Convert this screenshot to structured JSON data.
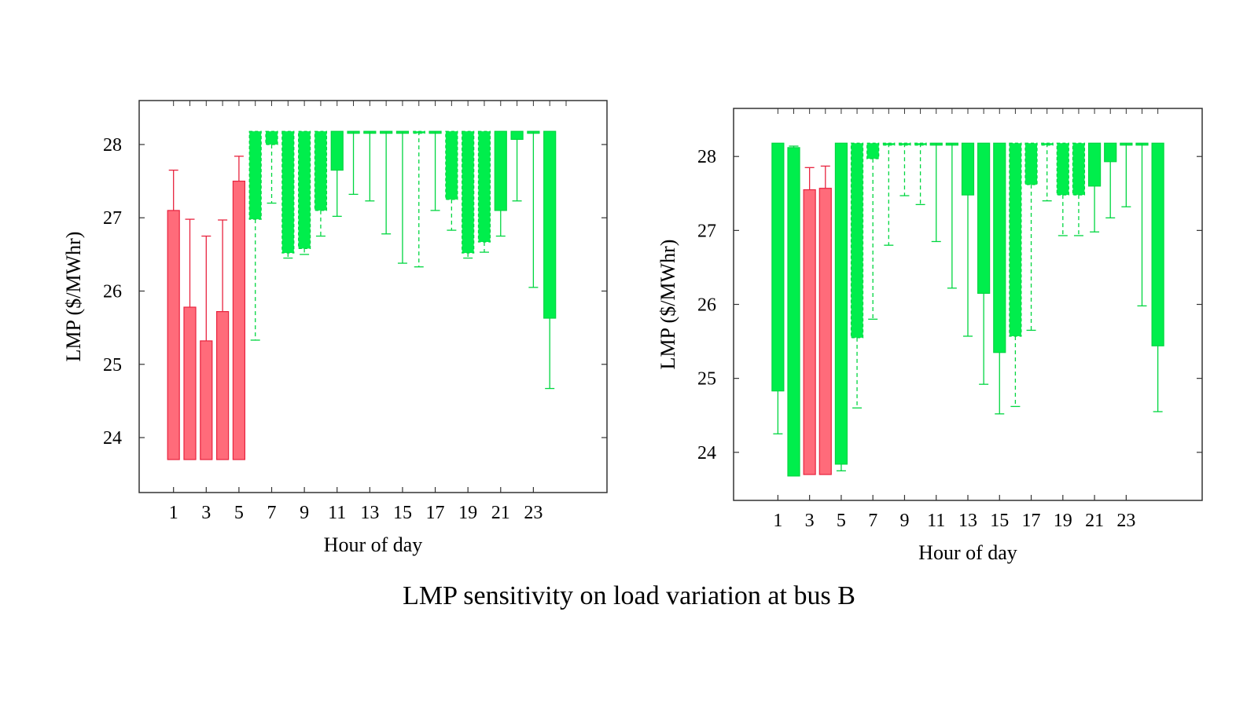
{
  "caption": "LMP sensitivity on load variation at bus B",
  "colors": {
    "red": "#ff6b7a",
    "red_edge": "#e8243f",
    "green": "#00ee4c",
    "green_edge": "#00d640",
    "axis": "#333333"
  },
  "chart_data": [
    {
      "type": "bar",
      "xlabel": "Hour of day",
      "ylabel": "LMP ($/MWhr)",
      "xticks": [
        1,
        3,
        5,
        7,
        9,
        11,
        13,
        15,
        17,
        19,
        21,
        23
      ],
      "yticks": [
        24,
        25,
        26,
        27,
        28
      ],
      "ylim": [
        23.25,
        28.6
      ],
      "xlim": [
        -1.1,
        27.5
      ],
      "grid": false,
      "series": [
        {
          "color": "red",
          "bars": [
            {
              "hour": 1,
              "low": 23.7,
              "high": 27.1,
              "whisker": 27.65
            },
            {
              "hour": 2,
              "low": 23.7,
              "high": 25.78,
              "whisker": 26.98
            },
            {
              "hour": 3,
              "low": 23.7,
              "high": 25.32,
              "whisker": 26.75
            },
            {
              "hour": 4,
              "low": 23.7,
              "high": 25.72,
              "whisker": 26.97
            },
            {
              "hour": 5,
              "low": 23.7,
              "high": 27.5,
              "whisker": 27.84
            }
          ]
        },
        {
          "color": "green",
          "bars": [
            {
              "hour": 6,
              "low": 26.98,
              "high": 28.18,
              "whisker": 25.33,
              "dashed": true
            },
            {
              "hour": 7,
              "low": 28.0,
              "high": 28.18,
              "whisker": 27.2,
              "dashed": true
            },
            {
              "hour": 8,
              "low": 26.52,
              "high": 28.18,
              "whisker": 26.45,
              "dashed": true
            },
            {
              "hour": 9,
              "low": 26.58,
              "high": 28.18,
              "whisker": 26.5,
              "dashed": true
            },
            {
              "hour": 10,
              "low": 27.1,
              "high": 28.18,
              "whisker": 26.75,
              "dashed": true
            },
            {
              "hour": 11,
              "low": 27.65,
              "high": 28.18,
              "whisker": 27.02
            },
            {
              "hour": 12,
              "low": 28.18,
              "high": 28.18,
              "whisker": 27.32
            },
            {
              "hour": 13,
              "low": 28.18,
              "high": 28.18,
              "whisker": 27.23
            },
            {
              "hour": 14,
              "low": 28.18,
              "high": 28.18,
              "whisker": 26.78
            },
            {
              "hour": 15,
              "low": 28.18,
              "high": 28.18,
              "whisker": 26.38
            },
            {
              "hour": 16,
              "low": 28.18,
              "high": 28.18,
              "whisker": 26.33,
              "dashed": true
            },
            {
              "hour": 17,
              "low": 28.18,
              "high": 28.18,
              "whisker": 27.1
            },
            {
              "hour": 18,
              "low": 27.25,
              "high": 28.18,
              "whisker": 26.83,
              "dashed": true
            },
            {
              "hour": 19,
              "low": 26.52,
              "high": 28.18,
              "whisker": 26.45,
              "dashed": true
            },
            {
              "hour": 20,
              "low": 26.67,
              "high": 28.18,
              "whisker": 26.53,
              "dashed": true
            },
            {
              "hour": 21,
              "low": 27.1,
              "high": 28.18,
              "whisker": 26.75
            },
            {
              "hour": 22,
              "low": 28.07,
              "high": 28.18,
              "whisker": 27.23
            },
            {
              "hour": 23,
              "low": 28.18,
              "high": 28.18,
              "whisker": 26.05
            },
            {
              "hour": 24,
              "low": 25.63,
              "high": 28.18,
              "whisker": 24.67
            }
          ]
        }
      ]
    },
    {
      "type": "bar",
      "xlabel": "Hour of day",
      "ylabel": "LMP ($/MWhr)",
      "xticks": [
        1,
        3,
        5,
        7,
        9,
        11,
        13,
        15,
        17,
        19,
        21,
        23
      ],
      "yticks": [
        24,
        25,
        26,
        27,
        28
      ],
      "ylim": [
        23.35,
        28.65
      ],
      "xlim": [
        -1.8,
        27.8
      ],
      "grid": false,
      "series": [
        {
          "color": "red",
          "bars": [
            {
              "hour": 3,
              "low": 23.7,
              "high": 27.55,
              "whisker": 27.85
            },
            {
              "hour": 4,
              "low": 23.7,
              "high": 27.57,
              "whisker": 27.87
            }
          ]
        },
        {
          "color": "green",
          "bars": [
            {
              "hour": 1,
              "low": 24.83,
              "high": 28.18,
              "whisker": 24.25
            },
            {
              "hour": 2,
              "low": 23.68,
              "high": 28.12,
              "whisker": 28.14
            },
            {
              "hour": 5,
              "low": 23.84,
              "high": 28.18,
              "whisker": 23.75
            },
            {
              "hour": 6,
              "low": 25.55,
              "high": 28.18,
              "whisker": 24.6,
              "dashed": true
            },
            {
              "hour": 7,
              "low": 27.97,
              "high": 28.18,
              "whisker": 25.8,
              "dashed": true
            },
            {
              "hour": 8,
              "low": 28.18,
              "high": 28.18,
              "whisker": 26.8,
              "dashed": true
            },
            {
              "hour": 9,
              "low": 28.18,
              "high": 28.18,
              "whisker": 27.47,
              "dashed": true
            },
            {
              "hour": 10,
              "low": 28.18,
              "high": 28.18,
              "whisker": 27.35,
              "dashed": true
            },
            {
              "hour": 11,
              "low": 28.18,
              "high": 28.18,
              "whisker": 26.85
            },
            {
              "hour": 12,
              "low": 28.18,
              "high": 28.18,
              "whisker": 26.22
            },
            {
              "hour": 13,
              "low": 27.48,
              "high": 28.18,
              "whisker": 25.57
            },
            {
              "hour": 14,
              "low": 26.15,
              "high": 28.18,
              "whisker": 24.92
            },
            {
              "hour": 15,
              "low": 25.35,
              "high": 28.18,
              "whisker": 24.52
            },
            {
              "hour": 16,
              "low": 25.57,
              "high": 28.18,
              "whisker": 24.62,
              "dashed": true
            },
            {
              "hour": 17,
              "low": 27.62,
              "high": 28.18,
              "whisker": 25.65,
              "dashed": true
            },
            {
              "hour": 18,
              "low": 28.18,
              "high": 28.18,
              "whisker": 27.4,
              "dashed": true
            },
            {
              "hour": 19,
              "low": 27.48,
              "high": 28.18,
              "whisker": 26.93,
              "dashed": true
            },
            {
              "hour": 20,
              "low": 27.48,
              "high": 28.18,
              "whisker": 26.93,
              "dashed": true
            },
            {
              "hour": 21,
              "low": 27.6,
              "high": 28.18,
              "whisker": 26.98
            },
            {
              "hour": 22,
              "low": 27.93,
              "high": 28.18,
              "whisker": 27.17
            },
            {
              "hour": 23,
              "low": 28.18,
              "high": 28.18,
              "whisker": 27.32
            },
            {
              "hour": 24,
              "low": 28.18,
              "high": 28.18,
              "whisker": 25.98
            },
            {
              "hour": 25,
              "low": 25.44,
              "high": 28.18,
              "whisker": 24.55
            }
          ]
        }
      ]
    }
  ]
}
